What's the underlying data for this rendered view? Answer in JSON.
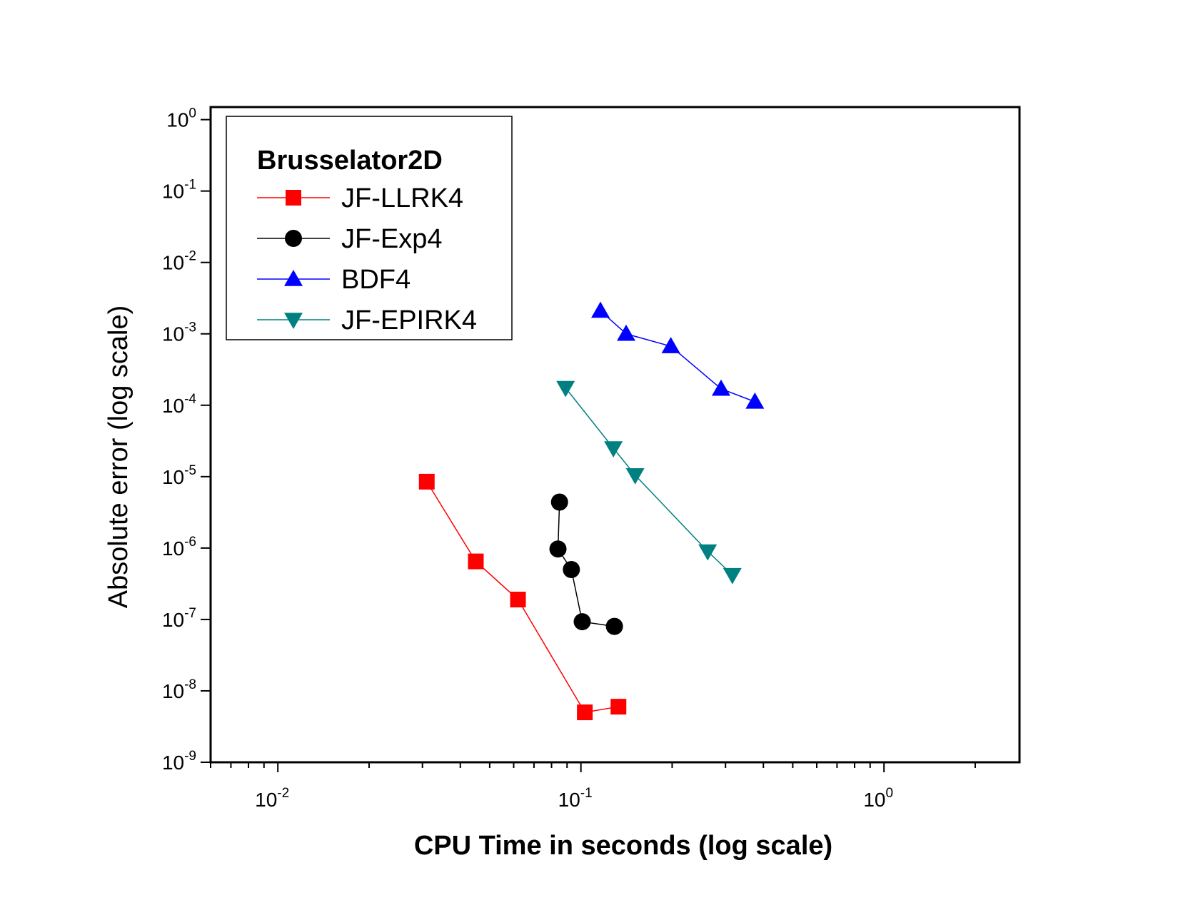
{
  "chart_data": {
    "type": "line",
    "x_scale": "log",
    "y_scale": "log",
    "xlabel": "CPU Time in seconds (log scale)",
    "ylabel": "Absolute error (log scale)",
    "xlim": [
      0.006,
      2.8
    ],
    "ylim": [
      1e-09,
      1.5
    ],
    "x_ticks": [
      {
        "value": 0.01,
        "base": "10",
        "exp": "-2"
      },
      {
        "value": 0.1,
        "base": "10",
        "exp": "-1"
      },
      {
        "value": 1,
        "base": "10",
        "exp": "0"
      }
    ],
    "y_ticks": [
      {
        "value": 1,
        "base": "10",
        "exp": "0"
      },
      {
        "value": 0.1,
        "base": "10",
        "exp": "-1"
      },
      {
        "value": 0.01,
        "base": "10",
        "exp": "-2"
      },
      {
        "value": 0.001,
        "base": "10",
        "exp": "-3"
      },
      {
        "value": 0.0001,
        "base": "10",
        "exp": "-4"
      },
      {
        "value": 1e-05,
        "base": "10",
        "exp": "-5"
      },
      {
        "value": 1e-06,
        "base": "10",
        "exp": "-6"
      },
      {
        "value": 1e-07,
        "base": "10",
        "exp": "-7"
      },
      {
        "value": 1e-08,
        "base": "10",
        "exp": "-8"
      },
      {
        "value": 1e-09,
        "base": "10",
        "exp": "-9"
      }
    ],
    "legend": {
      "title": "Brusselator2D",
      "position": "top-left"
    },
    "grid": false,
    "series": [
      {
        "name": "JF-LLRK4",
        "color": "#ff0000",
        "marker": "square",
        "points": [
          [
            0.031,
            8.5e-06
          ],
          [
            0.045,
            6.5e-07
          ],
          [
            0.062,
            1.9e-07
          ],
          [
            0.103,
            5e-09
          ],
          [
            0.133,
            6e-09
          ]
        ]
      },
      {
        "name": "JF-Exp4",
        "color": "#000000",
        "marker": "circle",
        "points": [
          [
            0.085,
            4.4e-06
          ],
          [
            0.084,
            9.7e-07
          ],
          [
            0.093,
            5e-07
          ],
          [
            0.101,
            9.3e-08
          ],
          [
            0.129,
            8e-08
          ]
        ]
      },
      {
        "name": "BDF4",
        "color": "#0000ff",
        "marker": "triangle-up",
        "points": [
          [
            0.116,
            0.0021
          ],
          [
            0.141,
            0.001
          ],
          [
            0.198,
            0.00067
          ],
          [
            0.29,
            0.00017
          ],
          [
            0.375,
            0.000112
          ]
        ]
      },
      {
        "name": "JF-EPIRK4",
        "color": "#008080",
        "marker": "triangle-down",
        "points": [
          [
            0.089,
            0.000175
          ],
          [
            0.128,
            2.5e-05
          ],
          [
            0.151,
            1.05e-05
          ],
          [
            0.262,
            9e-07
          ],
          [
            0.316,
            4.2e-07
          ]
        ]
      }
    ]
  }
}
